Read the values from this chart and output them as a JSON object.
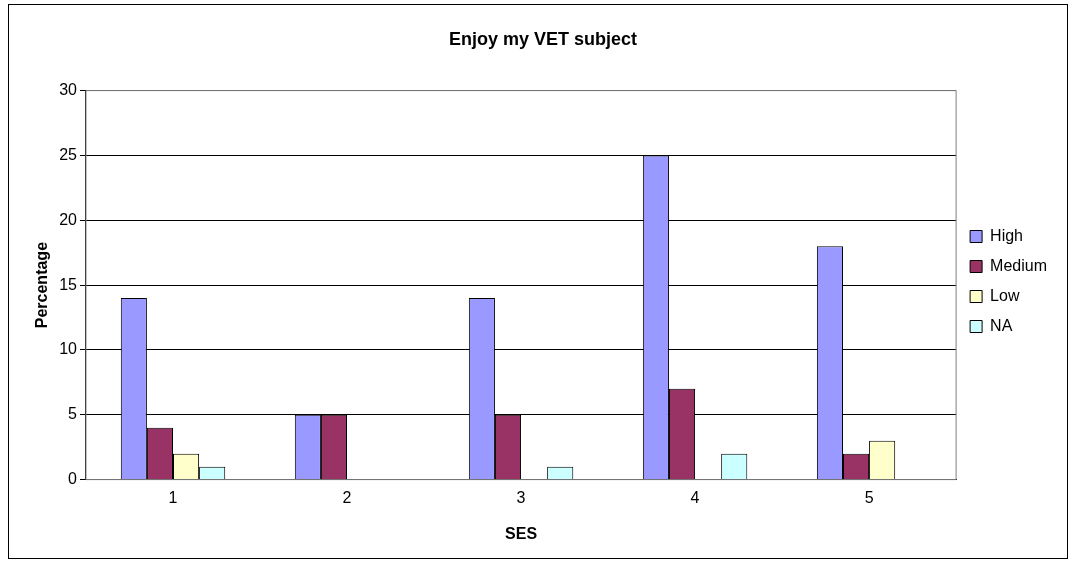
{
  "chart_data": {
    "type": "bar",
    "title": "Enjoy my VET subject",
    "xlabel": "SES",
    "ylabel": "Percentage",
    "categories": [
      "1",
      "2",
      "3",
      "4",
      "5"
    ],
    "series": [
      {
        "name": "High",
        "color": "#9999ff",
        "values": [
          14,
          5,
          14,
          25,
          18
        ]
      },
      {
        "name": "Medium",
        "color": "#993366",
        "values": [
          4,
          5,
          5,
          7,
          2
        ]
      },
      {
        "name": "Low",
        "color": "#ffffcc",
        "values": [
          2,
          null,
          null,
          null,
          3
        ]
      },
      {
        "name": "NA",
        "color": "#ccffff",
        "values": [
          1,
          null,
          1,
          2,
          null
        ]
      }
    ],
    "ylim": [
      0,
      30
    ],
    "yticks": [
      0,
      5,
      10,
      15,
      20,
      25,
      30
    ],
    "grid": "y",
    "legend": "right"
  }
}
